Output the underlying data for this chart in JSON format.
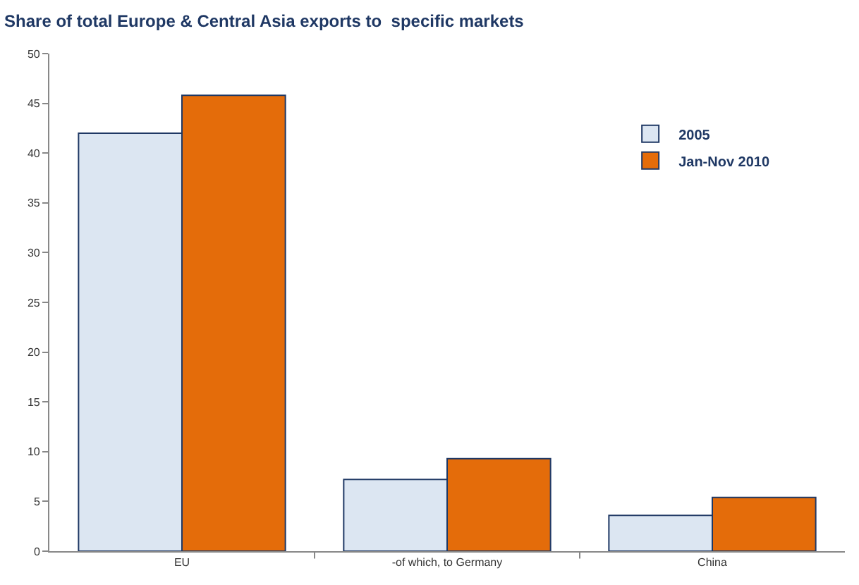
{
  "chart_data": {
    "type": "bar",
    "title": "Share of total Europe & Central Asia exports to  specific markets",
    "categories": [
      "EU",
      "-of which, to Germany",
      "China"
    ],
    "series": [
      {
        "name": "2005",
        "color": "#dce6f2",
        "values": [
          42,
          7.2,
          3.6
        ]
      },
      {
        "name": "Jan-Nov 2010",
        "color": "#e46c0a",
        "values": [
          45.8,
          9.3,
          5.4
        ]
      }
    ],
    "ylim": [
      0,
      50
    ],
    "yticks": [
      0,
      5,
      10,
      15,
      20,
      25,
      30,
      35,
      40,
      45,
      50
    ],
    "grid": false,
    "legend": "top right"
  }
}
